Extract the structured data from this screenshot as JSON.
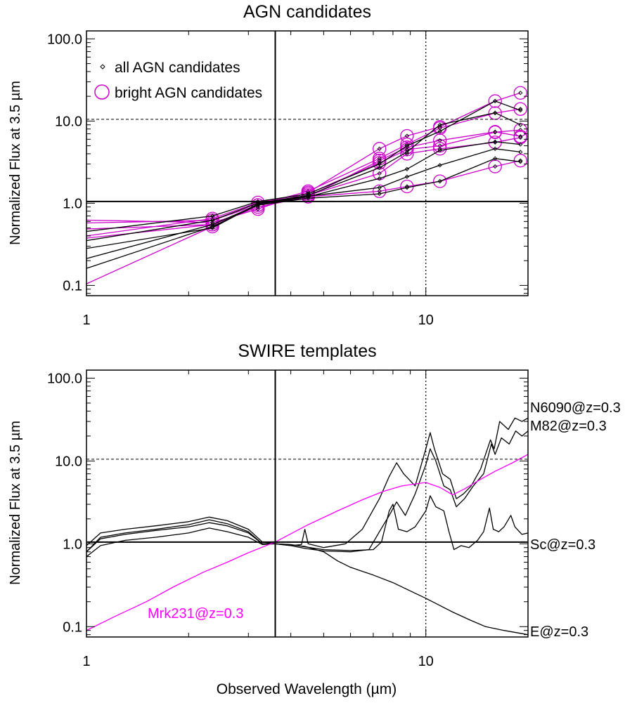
{
  "colors": {
    "axis": "#000000",
    "agn": "#000000",
    "bright": "#cc00cc",
    "mrk": "#ff00ff",
    "template": "#000000"
  },
  "xlabel": "Observed Wavelength (µm)",
  "chart_data": [
    {
      "type": "line",
      "title": "AGN candidates",
      "ylabel": "Normalized Flux at 3.5 µm",
      "xscale": "log",
      "yscale": "log",
      "xlim": [
        1,
        20
      ],
      "ylim": [
        0.075,
        125
      ],
      "xticks": [
        {
          "v": 1,
          "label": "1"
        },
        {
          "v": 10,
          "label": "10"
        }
      ],
      "yticks": [
        {
          "v": 0.1,
          "label": "0.1"
        },
        {
          "v": 1,
          "label": "1.0"
        },
        {
          "v": 10,
          "label": "10.0"
        },
        {
          "v": 100,
          "label": "100.0"
        }
      ],
      "refs": {
        "vline_solid": 3.6,
        "vline_dotted": 10,
        "hline_solid": 1.05,
        "hline_dashed": 10.5
      },
      "legend": [
        {
          "label": "all AGN candidates",
          "marker": "diamond"
        },
        {
          "label": "bright AGN candidates",
          "marker": "circle"
        }
      ],
      "x": [
        0.6,
        2.35,
        3.2,
        4.5,
        7.3,
        8.8,
        11,
        16,
        19
      ],
      "series": [
        {
          "bright": true,
          "values": [
            0.65,
            0.58,
            0.85,
            1.35,
            4.6,
            6.6,
            8.5,
            17.5,
            22
          ]
        },
        {
          "bright": true,
          "values": [
            0.55,
            0.62,
            0.95,
            1.4,
            3.5,
            5.2,
            8.2,
            12.5,
            14
          ]
        },
        {
          "bright": true,
          "values": [
            0.3,
            0.65,
            1.02,
            1.3,
            3.1,
            4.5,
            5.0,
            7.3,
            7.8
          ]
        },
        {
          "bright": true,
          "values": [
            0.3,
            0.55,
            0.9,
            1.2,
            3.3,
            4.8,
            5.8,
            7.4,
            6.5
          ]
        },
        {
          "bright": true,
          "values": [
            0.45,
            0.55,
            0.95,
            1.25,
            2.3,
            4.0,
            4.6,
            5.5,
            6.3
          ]
        },
        {
          "bright": true,
          "values": [
            0.04,
            0.52,
            0.95,
            1.2,
            1.4,
            1.6,
            1.85,
            2.8,
            3.3
          ]
        },
        {
          "bright": false,
          "values": [
            0.12,
            0.55,
            0.95,
            1.15,
            1.3,
            1.55,
            1.85,
            3.5,
            3.2
          ]
        },
        {
          "bright": false,
          "values": [
            0.2,
            0.5,
            0.98,
            1.22,
            1.55,
            2.1,
            2.9,
            4.6,
            4.2
          ]
        },
        {
          "bright": false,
          "values": [
            0.08,
            0.52,
            0.95,
            1.2,
            2.0,
            2.6,
            4.4,
            5.6,
            5.2
          ]
        },
        {
          "bright": false,
          "values": [
            0.25,
            0.62,
            1.0,
            1.25,
            2.7,
            4.2,
            9.0,
            12.6,
            9.0
          ]
        },
        {
          "bright": false,
          "values": [
            0.35,
            0.7,
            1.05,
            1.3,
            3.0,
            5.0,
            7.5,
            17.5,
            13.5
          ]
        }
      ]
    },
    {
      "type": "line",
      "title": "SWIRE templates",
      "ylabel": "Normalized Flux at 3.5 µm",
      "xscale": "log",
      "yscale": "log",
      "xlim": [
        1,
        20
      ],
      "ylim": [
        0.075,
        125
      ],
      "xticks": [
        {
          "v": 1,
          "label": "1"
        },
        {
          "v": 10,
          "label": "10"
        }
      ],
      "yticks": [
        {
          "v": 0.1,
          "label": "0.1"
        },
        {
          "v": 1,
          "label": "1.0"
        },
        {
          "v": 10,
          "label": "10.0"
        },
        {
          "v": 100,
          "label": "100.0"
        }
      ],
      "refs": {
        "vline_solid": 3.6,
        "vline_dotted": 10,
        "hline_solid": 1.05,
        "hline_dashed": 10.5
      },
      "series": [
        {
          "name": "N6090@z=0.3",
          "color": "template",
          "points": [
            [
              1,
              0.95
            ],
            [
              1.1,
              1.35
            ],
            [
              1.3,
              1.5
            ],
            [
              1.6,
              1.65
            ],
            [
              2.0,
              1.85
            ],
            [
              2.3,
              2.1
            ],
            [
              2.6,
              1.9
            ],
            [
              3.0,
              1.5
            ],
            [
              3.3,
              1.05
            ],
            [
              3.6,
              1.0
            ],
            [
              4.0,
              0.95
            ],
            [
              4.3,
              0.98
            ],
            [
              4.4,
              1.5
            ],
            [
              4.5,
              1.0
            ],
            [
              5.0,
              0.9
            ],
            [
              5.8,
              1.0
            ],
            [
              6.5,
              1.5
            ],
            [
              7.3,
              3.5
            ],
            [
              7.8,
              6.5
            ],
            [
              8.2,
              9.5
            ],
            [
              8.6,
              7.0
            ],
            [
              9.3,
              5.0
            ],
            [
              10.0,
              14.0
            ],
            [
              10.3,
              22.0
            ],
            [
              10.6,
              14.0
            ],
            [
              11.2,
              7.0
            ],
            [
              11.8,
              6.0
            ],
            [
              12.3,
              3.5
            ],
            [
              12.9,
              4.0
            ],
            [
              13.6,
              5.0
            ],
            [
              14.5,
              8.0
            ],
            [
              15.5,
              18.0
            ],
            [
              15.9,
              14.0
            ],
            [
              16.5,
              30.0
            ],
            [
              17.5,
              24.0
            ],
            [
              18.3,
              33.0
            ],
            [
              19.2,
              30.0
            ],
            [
              20,
              33.0
            ]
          ]
        },
        {
          "name": "M82@z=0.3",
          "color": "template",
          "points": [
            [
              1,
              0.8
            ],
            [
              1.1,
              1.15
            ],
            [
              1.3,
              1.3
            ],
            [
              1.6,
              1.45
            ],
            [
              2.0,
              1.6
            ],
            [
              2.3,
              1.8
            ],
            [
              2.6,
              1.65
            ],
            [
              3.0,
              1.35
            ],
            [
              3.3,
              1.0
            ],
            [
              3.6,
              1.0
            ],
            [
              4.0,
              0.95
            ],
            [
              4.4,
              0.88
            ],
            [
              5.0,
              0.82
            ],
            [
              6.0,
              0.8
            ],
            [
              6.8,
              0.85
            ],
            [
              7.3,
              1.4
            ],
            [
              7.8,
              2.2
            ],
            [
              8.2,
              3.2
            ],
            [
              8.7,
              2.2
            ],
            [
              9.3,
              4.0
            ],
            [
              10.0,
              9.0
            ],
            [
              10.3,
              14.0
            ],
            [
              10.7,
              10.0
            ],
            [
              11.3,
              5.0
            ],
            [
              11.8,
              4.5
            ],
            [
              12.3,
              2.8
            ],
            [
              13.0,
              3.5
            ],
            [
              13.8,
              5.0
            ],
            [
              14.8,
              7.0
            ],
            [
              15.6,
              16.0
            ],
            [
              16.0,
              12.0
            ],
            [
              16.7,
              19.0
            ],
            [
              17.6,
              16.0
            ],
            [
              18.4,
              23.0
            ],
            [
              19.2,
              20.0
            ],
            [
              20,
              23.0
            ]
          ]
        },
        {
          "name": "Sc@z=0.3",
          "color": "template",
          "points": [
            [
              1,
              0.7
            ],
            [
              1.1,
              0.95
            ],
            [
              1.3,
              1.1
            ],
            [
              1.6,
              1.2
            ],
            [
              2.0,
              1.35
            ],
            [
              2.3,
              1.55
            ],
            [
              2.6,
              1.4
            ],
            [
              3.0,
              1.2
            ],
            [
              3.3,
              0.98
            ],
            [
              3.6,
              1.0
            ],
            [
              4.0,
              0.98
            ],
            [
              4.4,
              0.92
            ],
            [
              5.0,
              0.85
            ],
            [
              6.0,
              0.83
            ],
            [
              7.0,
              0.85
            ],
            [
              7.4,
              1.05
            ],
            [
              7.8,
              2.5
            ],
            [
              8.0,
              3.0
            ],
            [
              8.3,
              1.5
            ],
            [
              8.8,
              1.4
            ],
            [
              9.3,
              1.6
            ],
            [
              10.0,
              2.5
            ],
            [
              10.3,
              3.8
            ],
            [
              10.7,
              2.8
            ],
            [
              11.3,
              2.5
            ],
            [
              11.7,
              1.4
            ],
            [
              12.1,
              0.85
            ],
            [
              12.7,
              0.95
            ],
            [
              13.4,
              0.9
            ],
            [
              14.2,
              1.1
            ],
            [
              14.8,
              1.4
            ],
            [
              15.4,
              2.7
            ],
            [
              15.8,
              1.5
            ],
            [
              16.4,
              1.4
            ],
            [
              17.0,
              1.6
            ],
            [
              17.8,
              2.2
            ],
            [
              18.3,
              1.6
            ],
            [
              19.2,
              1.3
            ],
            [
              20,
              1.35
            ]
          ]
        },
        {
          "name": "E@z=0.3",
          "color": "template",
          "points": [
            [
              1,
              0.8
            ],
            [
              1.1,
              1.2
            ],
            [
              1.3,
              1.35
            ],
            [
              1.6,
              1.5
            ],
            [
              2.0,
              1.7
            ],
            [
              2.3,
              1.95
            ],
            [
              2.6,
              1.75
            ],
            [
              3.0,
              1.4
            ],
            [
              3.3,
              1.0
            ],
            [
              3.6,
              1.0
            ],
            [
              4.0,
              0.97
            ],
            [
              4.4,
              0.93
            ],
            [
              5.0,
              0.8
            ],
            [
              5.5,
              0.62
            ],
            [
              6.0,
              0.52
            ],
            [
              7.0,
              0.42
            ],
            [
              8.0,
              0.34
            ],
            [
              9.0,
              0.27
            ],
            [
              10.0,
              0.22
            ],
            [
              11.0,
              0.18
            ],
            [
              12.0,
              0.15
            ],
            [
              13.5,
              0.12
            ],
            [
              15.0,
              0.1
            ],
            [
              17.0,
              0.09
            ],
            [
              20,
              0.08
            ]
          ]
        },
        {
          "name": "Mrk231@z=0.3",
          "color": "mrk",
          "points": [
            [
              1,
              0.09
            ],
            [
              1.2,
              0.13
            ],
            [
              1.5,
              0.2
            ],
            [
              1.8,
              0.3
            ],
            [
              2.2,
              0.45
            ],
            [
              2.6,
              0.6
            ],
            [
              3.0,
              0.78
            ],
            [
              3.6,
              1.05
            ],
            [
              4.5,
              1.7
            ],
            [
              5.5,
              2.5
            ],
            [
              6.5,
              3.4
            ],
            [
              7.5,
              4.3
            ],
            [
              8.5,
              5.0
            ],
            [
              10.0,
              5.5
            ],
            [
              11.0,
              4.8
            ],
            [
              12.0,
              3.9
            ],
            [
              13.0,
              4.6
            ],
            [
              14.5,
              6.0
            ],
            [
              16.0,
              7.5
            ],
            [
              18.0,
              9.5
            ],
            [
              20,
              12.0
            ]
          ]
        }
      ]
    }
  ]
}
